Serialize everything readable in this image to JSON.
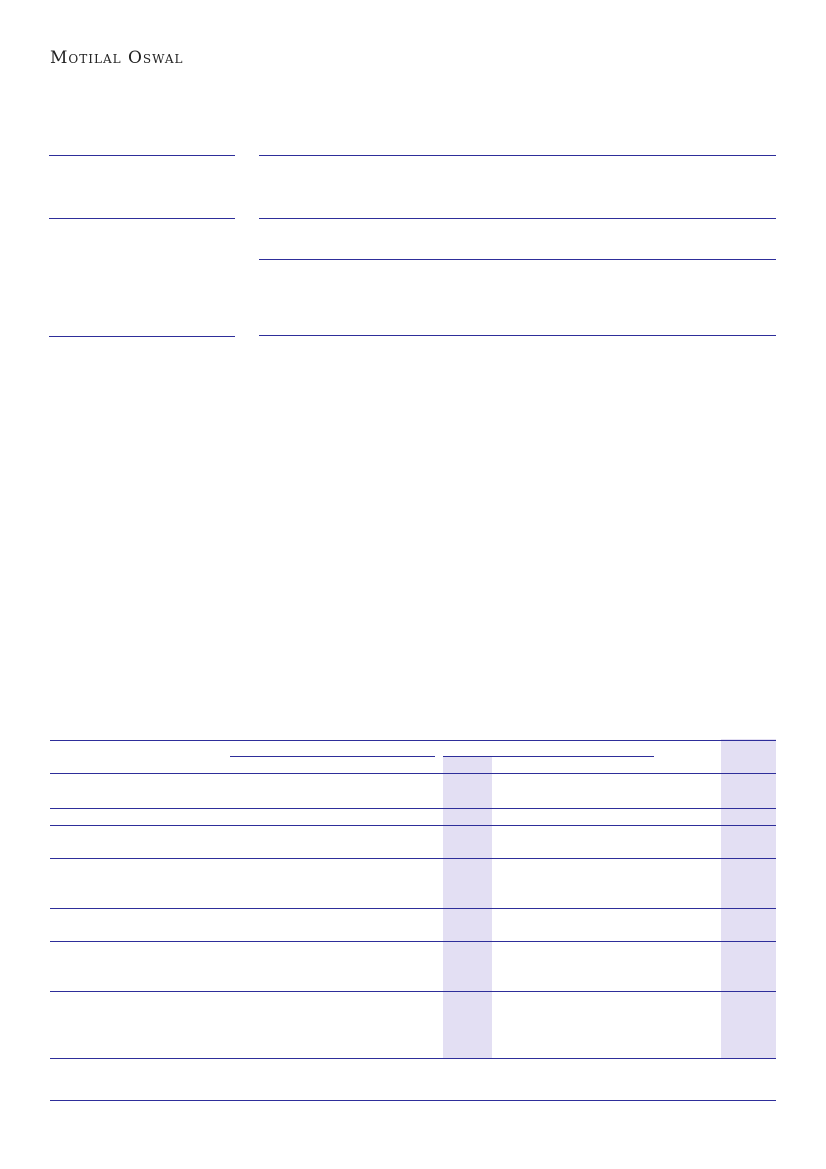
{
  "header": {
    "logo_text": "Motilal Oswal"
  },
  "colors": {
    "rule": "#2e2e9a",
    "shaded_column": "#e3dff3"
  }
}
